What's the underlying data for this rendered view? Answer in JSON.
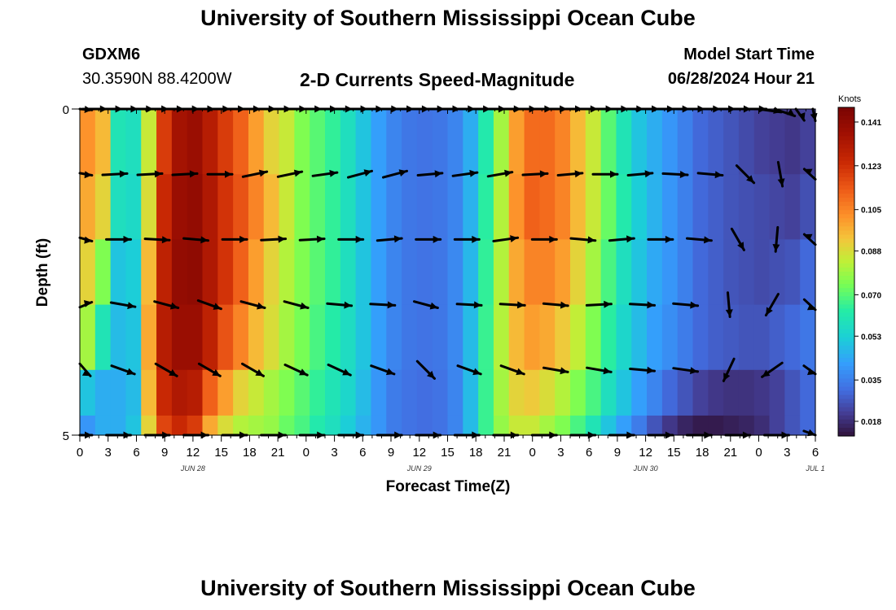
{
  "page": {
    "title": "University of Southern Mississippi Ocean Cube",
    "footer_title": "University of Southern Mississippi Ocean Cube",
    "station": "GDXM6",
    "coords": "30.3590N  88.4200W",
    "subtitle": "2-D Currents Speed-Magnitude",
    "model_start_label": "Model Start Time",
    "model_start_value": "06/28/2024 Hour 21"
  },
  "chart_data": {
    "type": "heatmap",
    "title": "2-D Currents Speed-Magnitude",
    "xlabel": "Forecast Time(Z)",
    "ylabel": "Depth (ft)",
    "y_ticks": [
      "0",
      "5"
    ],
    "ylim": [
      0,
      5
    ],
    "x_tick_labels": [
      "0",
      "3",
      "6",
      "9",
      "12",
      "15",
      "18",
      "21",
      "0",
      "3",
      "6",
      "9",
      "12",
      "15",
      "18",
      "21",
      "0",
      "3",
      "6",
      "9",
      "12",
      "15",
      "18",
      "21",
      "0",
      "3",
      "6"
    ],
    "date_labels": [
      {
        "label": "JUN 28",
        "hour": 12
      },
      {
        "label": "JUN 29",
        "hour": 36
      },
      {
        "label": "JUN 30",
        "hour": 60
      },
      {
        "label": "JUL 1",
        "hour": 78
      }
    ],
    "x_hours_start": 0,
    "x_hours_end": 78,
    "colorbar": {
      "unit": "Knots",
      "ticks": [
        "0.141",
        "0.123",
        "0.105",
        "0.088",
        "0.070",
        "0.053",
        "0.035",
        "0.018"
      ],
      "min": 0.012,
      "max": 0.147
    },
    "speed_rows": [
      {
        "depth": 0.5,
        "values": [
          0.102,
          0.095,
          0.06,
          0.058,
          0.085,
          0.12,
          0.135,
          0.138,
          0.13,
          0.12,
          0.112,
          0.1,
          0.09,
          0.085,
          0.075,
          0.07,
          0.065,
          0.058,
          0.05,
          0.042,
          0.036,
          0.033,
          0.032,
          0.033,
          0.036,
          0.045,
          0.062,
          0.08,
          0.1,
          0.11,
          0.11,
          0.105,
          0.095,
          0.085,
          0.07,
          0.06,
          0.05,
          0.045,
          0.04,
          0.035,
          0.03,
          0.028,
          0.026,
          0.024,
          0.022,
          0.021,
          0.02,
          0.022
        ]
      },
      {
        "depth": 1.5,
        "values": [
          0.098,
          0.09,
          0.058,
          0.056,
          0.088,
          0.125,
          0.138,
          0.14,
          0.132,
          0.122,
          0.115,
          0.105,
          0.095,
          0.085,
          0.075,
          0.07,
          0.065,
          0.058,
          0.05,
          0.042,
          0.036,
          0.033,
          0.032,
          0.033,
          0.036,
          0.046,
          0.064,
          0.082,
          0.102,
          0.112,
          0.11,
          0.105,
          0.095,
          0.085,
          0.072,
          0.062,
          0.052,
          0.046,
          0.04,
          0.035,
          0.03,
          0.028,
          0.026,
          0.025,
          0.024,
          0.023,
          0.022,
          0.025
        ]
      },
      {
        "depth": 2.5,
        "values": [
          0.09,
          0.075,
          0.05,
          0.052,
          0.095,
          0.128,
          0.14,
          0.141,
          0.132,
          0.122,
          0.112,
          0.1,
          0.09,
          0.082,
          0.075,
          0.07,
          0.065,
          0.058,
          0.05,
          0.042,
          0.036,
          0.033,
          0.032,
          0.033,
          0.037,
          0.047,
          0.065,
          0.082,
          0.098,
          0.105,
          0.105,
          0.1,
          0.09,
          0.08,
          0.068,
          0.058,
          0.05,
          0.044,
          0.04,
          0.035,
          0.03,
          0.028,
          0.026,
          0.025,
          0.024,
          0.025,
          0.026,
          0.03
        ]
      },
      {
        "depth": 3.5,
        "values": [
          0.08,
          0.06,
          0.048,
          0.05,
          0.098,
          0.13,
          0.138,
          0.138,
          0.128,
          0.115,
          0.105,
          0.095,
          0.088,
          0.08,
          0.074,
          0.068,
          0.063,
          0.057,
          0.05,
          0.042,
          0.036,
          0.033,
          0.032,
          0.033,
          0.037,
          0.048,
          0.066,
          0.082,
          0.095,
          0.1,
          0.098,
          0.092,
          0.084,
          0.075,
          0.064,
          0.055,
          0.048,
          0.042,
          0.038,
          0.034,
          0.03,
          0.028,
          0.027,
          0.026,
          0.026,
          0.028,
          0.03,
          0.033
        ]
      },
      {
        "depth": 4.5,
        "values": [
          0.05,
          0.045,
          0.045,
          0.048,
          0.095,
          0.125,
          0.132,
          0.13,
          0.112,
          0.1,
          0.09,
          0.085,
          0.08,
          0.075,
          0.07,
          0.065,
          0.06,
          0.055,
          0.048,
          0.04,
          0.034,
          0.032,
          0.031,
          0.032,
          0.036,
          0.048,
          0.066,
          0.08,
          0.09,
          0.092,
          0.088,
          0.082,
          0.075,
          0.068,
          0.058,
          0.05,
          0.042,
          0.036,
          0.03,
          0.026,
          0.022,
          0.02,
          0.019,
          0.019,
          0.02,
          0.022,
          0.026,
          0.03
        ]
      },
      {
        "depth": 4.9,
        "values": [
          0.04,
          0.045,
          0.045,
          0.05,
          0.09,
          0.118,
          0.125,
          0.12,
          0.098,
          0.088,
          0.082,
          0.08,
          0.078,
          0.072,
          0.068,
          0.062,
          0.058,
          0.052,
          0.046,
          0.04,
          0.034,
          0.032,
          0.031,
          0.032,
          0.036,
          0.048,
          0.066,
          0.078,
          0.085,
          0.085,
          0.08,
          0.075,
          0.068,
          0.06,
          0.05,
          0.042,
          0.034,
          0.026,
          0.02,
          0.016,
          0.014,
          0.014,
          0.015,
          0.016,
          0.018,
          0.022,
          0.026,
          0.03
        ]
      }
    ],
    "vector_rows": [
      {
        "depth": 0.0,
        "angles": [
          5,
          0,
          0,
          0,
          0,
          0,
          0,
          0,
          0,
          0,
          0,
          0,
          0,
          0,
          0,
          0,
          0,
          0,
          0,
          0,
          0,
          0,
          0,
          0,
          0,
          0,
          0,
          0,
          0,
          0,
          0,
          0,
          0,
          0,
          0,
          0,
          0,
          0,
          0,
          0,
          0,
          0,
          0,
          0,
          0,
          15,
          35,
          70,
          78
        ]
      },
      {
        "depth": 1.0,
        "angles": [
          5,
          -3,
          -3,
          -3,
          0,
          -12,
          -12,
          -8,
          -15,
          -15,
          -5,
          -8,
          -10,
          -3,
          -5,
          0,
          -5,
          3,
          5,
          45,
          80,
          -155
        ]
      },
      {
        "depth": 2.0,
        "angles": [
          8,
          0,
          3,
          5,
          0,
          -3,
          -3,
          0,
          -5,
          0,
          0,
          -8,
          0,
          5,
          -5,
          0,
          5,
          60,
          95,
          -155
        ]
      },
      {
        "depth": 3.0,
        "angles": [
          -12,
          10,
          15,
          20,
          15,
          15,
          5,
          3,
          15,
          3,
          3,
          5,
          -3,
          3,
          5,
          85,
          120,
          25
        ]
      },
      {
        "depth": 4.0,
        "angles": [
          30,
          20,
          30,
          30,
          30,
          25,
          25,
          20,
          45,
          20,
          20,
          10,
          10,
          5,
          8,
          115,
          145,
          20
        ]
      },
      {
        "depth": 5.0,
        "angles": [
          0,
          0,
          0,
          0,
          0,
          0,
          0,
          0,
          0,
          0,
          0,
          0,
          0,
          0,
          0,
          0,
          0,
          0,
          0,
          20
        ]
      }
    ]
  }
}
